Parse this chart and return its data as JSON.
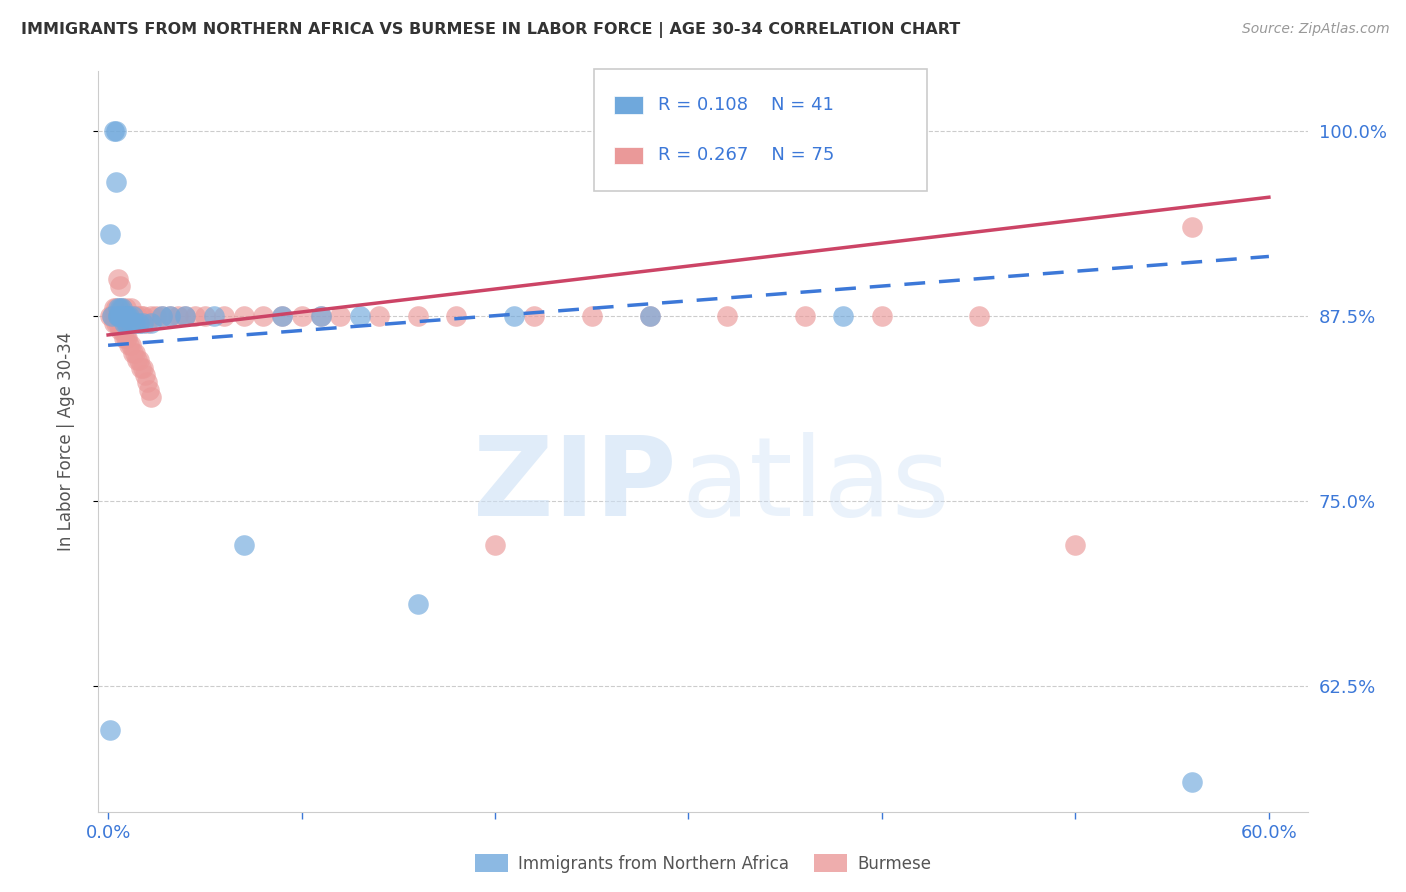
{
  "title": "IMMIGRANTS FROM NORTHERN AFRICA VS BURMESE IN LABOR FORCE | AGE 30-34 CORRELATION CHART",
  "source": "Source: ZipAtlas.com",
  "ylabel": "In Labor Force | Age 30-34",
  "xlim": [
    -0.005,
    0.62
  ],
  "ylim": [
    0.54,
    1.04
  ],
  "xticks": [
    0.0,
    0.1,
    0.2,
    0.3,
    0.4,
    0.5,
    0.6
  ],
  "yticks": [
    0.625,
    0.75,
    0.875,
    1.0
  ],
  "yticklabels": [
    "62.5%",
    "75.0%",
    "87.5%",
    "100.0%"
  ],
  "blue_R": 0.108,
  "blue_N": 41,
  "pink_R": 0.267,
  "pink_N": 75,
  "blue_color": "#6fa8dc",
  "pink_color": "#ea9999",
  "blue_trend_color": "#3c78d8",
  "pink_trend_color": "#cc4466",
  "legend_label_blue": "Immigrants from Northern Africa",
  "legend_label_pink": "Burmese",
  "blue_x": [
    0.001,
    0.002,
    0.003,
    0.004,
    0.004,
    0.005,
    0.005,
    0.005,
    0.006,
    0.006,
    0.006,
    0.007,
    0.007,
    0.007,
    0.008,
    0.008,
    0.009,
    0.009,
    0.01,
    0.01,
    0.011,
    0.012,
    0.013,
    0.014,
    0.016,
    0.018,
    0.022,
    0.028,
    0.032,
    0.04,
    0.055,
    0.07,
    0.09,
    0.11,
    0.13,
    0.16,
    0.21,
    0.28,
    0.38,
    0.001,
    0.56
  ],
  "blue_y": [
    0.595,
    0.875,
    1.0,
    0.965,
    1.0,
    0.875,
    0.88,
    0.875,
    0.875,
    0.88,
    0.875,
    0.875,
    0.875,
    0.88,
    0.87,
    0.875,
    0.875,
    0.87,
    0.87,
    0.875,
    0.875,
    0.87,
    0.875,
    0.87,
    0.87,
    0.87,
    0.87,
    0.875,
    0.875,
    0.875,
    0.875,
    0.72,
    0.875,
    0.875,
    0.875,
    0.68,
    0.875,
    0.875,
    0.875,
    0.93,
    0.56
  ],
  "pink_x": [
    0.001,
    0.002,
    0.003,
    0.003,
    0.004,
    0.004,
    0.005,
    0.005,
    0.006,
    0.006,
    0.007,
    0.007,
    0.008,
    0.008,
    0.009,
    0.009,
    0.01,
    0.01,
    0.011,
    0.012,
    0.013,
    0.014,
    0.015,
    0.016,
    0.017,
    0.018,
    0.02,
    0.022,
    0.025,
    0.028,
    0.032,
    0.036,
    0.04,
    0.045,
    0.05,
    0.06,
    0.07,
    0.08,
    0.09,
    0.1,
    0.11,
    0.12,
    0.14,
    0.16,
    0.18,
    0.2,
    0.22,
    0.25,
    0.28,
    0.32,
    0.36,
    0.4,
    0.45,
    0.5,
    0.56,
    0.003,
    0.004,
    0.005,
    0.006,
    0.007,
    0.008,
    0.009,
    0.01,
    0.011,
    0.012,
    0.013,
    0.014,
    0.015,
    0.016,
    0.017,
    0.018,
    0.019,
    0.02,
    0.021,
    0.022
  ],
  "pink_y": [
    0.875,
    0.875,
    0.875,
    0.88,
    0.875,
    0.88,
    0.875,
    0.9,
    0.875,
    0.895,
    0.875,
    0.88,
    0.875,
    0.875,
    0.875,
    0.88,
    0.875,
    0.875,
    0.875,
    0.88,
    0.875,
    0.875,
    0.875,
    0.87,
    0.875,
    0.875,
    0.87,
    0.875,
    0.875,
    0.875,
    0.875,
    0.875,
    0.875,
    0.875,
    0.875,
    0.875,
    0.875,
    0.875,
    0.875,
    0.875,
    0.875,
    0.875,
    0.875,
    0.875,
    0.875,
    0.72,
    0.875,
    0.875,
    0.875,
    0.875,
    0.875,
    0.875,
    0.875,
    0.72,
    0.935,
    0.87,
    0.87,
    0.87,
    0.865,
    0.865,
    0.86,
    0.86,
    0.86,
    0.855,
    0.855,
    0.85,
    0.85,
    0.845,
    0.845,
    0.84,
    0.84,
    0.835,
    0.83,
    0.825,
    0.82
  ],
  "blue_trend_x": [
    0.0,
    0.6
  ],
  "blue_trend_y": [
    0.855,
    0.915
  ],
  "pink_trend_x": [
    0.0,
    0.6
  ],
  "pink_trend_y": [
    0.862,
    0.955
  ]
}
